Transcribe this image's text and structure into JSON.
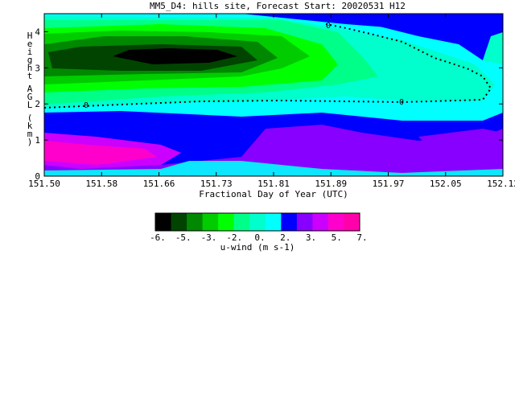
{
  "chart_data": {
    "type": "heatmap",
    "title": "MM5_D4: hills site,  Forecast Start: 20020531 H12",
    "xlabel": "Fractional Day of Year (UTC)",
    "ylabel": "Height AGL (km)",
    "xlim": [
      151.5,
      152.12
    ],
    "ylim": [
      0,
      4.5
    ],
    "x_ticks": [
      "151.50",
      "151.58",
      "151.66",
      "151.73",
      "151.81",
      "151.89",
      "151.97",
      "152.05",
      "152.12"
    ],
    "y_ticks": [
      "0",
      "1",
      "2",
      "3",
      "4"
    ],
    "zero_contour_labels": [
      "0",
      "0",
      "0"
    ],
    "colorbar": {
      "label": "u-wind (m s-1)",
      "tick_labels": [
        "-6.",
        "-5.",
        "-3.",
        "-2.",
        "0.",
        "2.",
        "3.",
        "5.",
        "7."
      ],
      "colors": [
        "#000000",
        "#004400",
        "#008800",
        "#00cc00",
        "#00ff00",
        "#00ff88",
        "#00ffcc",
        "#00ffff",
        "#0000ff",
        "#8800ff",
        "#cc00ff",
        "#ff00cc",
        "#ff00aa"
      ]
    },
    "grid": false
  }
}
